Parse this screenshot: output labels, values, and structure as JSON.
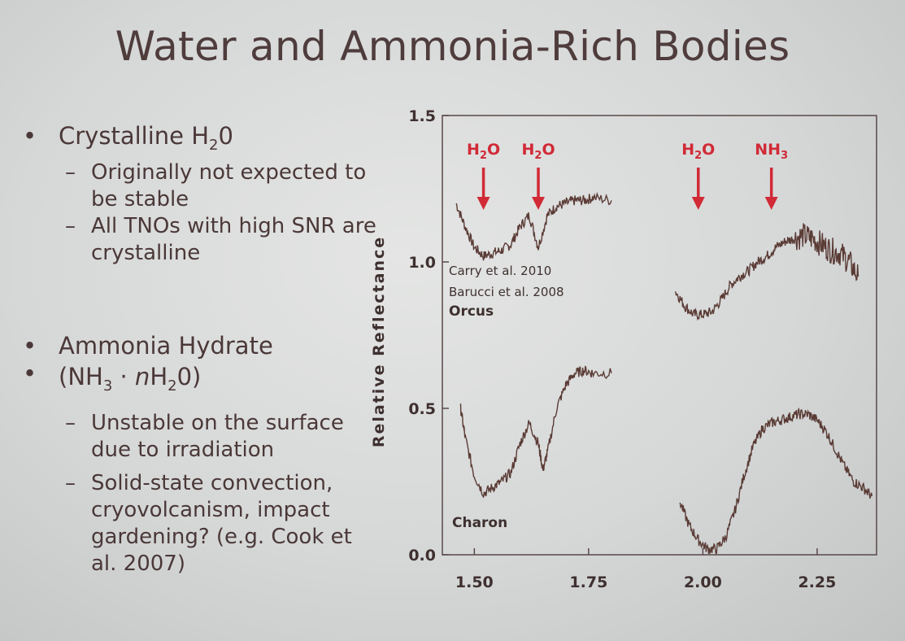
{
  "slide": {
    "title": "Water and Ammonia-Rich Bodies"
  },
  "bullets": [
    {
      "text": "Crystalline H",
      "sub": "2",
      "tail": "0",
      "subitems": [
        "Originally not expected to be stable",
        "All TNOs with high SNR are crystalline"
      ]
    },
    {
      "line1": "Ammonia Hydrate",
      "line2_a": "(NH",
      "line2_sub1": "3",
      "line2_b": " · ",
      "line2_n": "n",
      "line2_c": "H",
      "line2_sub2": "2",
      "line2_d": "0)",
      "subitems": [
        "Unstable on the surface due to irradiation",
        "Solid-state convection, cryovolcanism, impact gardening? (e.g. Cook et al. 2007)"
      ]
    }
  ],
  "chart_data": {
    "type": "line",
    "ylabel": "Relative Reflectance",
    "xlabel": "",
    "xlim": [
      1.43,
      2.38
    ],
    "ylim": [
      0.0,
      1.5
    ],
    "xticks": [
      "1.50",
      "1.75",
      "2.00",
      "2.25"
    ],
    "yticks": [
      "0.0",
      "0.5",
      "1.0",
      "1.5"
    ],
    "series": [
      {
        "name": "Orcus",
        "segments": [
          {
            "x": [
              1.46,
              1.48,
              1.5,
              1.52,
              1.54,
              1.56,
              1.58,
              1.6,
              1.62,
              1.64,
              1.66,
              1.68,
              1.7,
              1.72,
              1.74,
              1.76,
              1.8
            ],
            "y": [
              1.2,
              1.12,
              1.05,
              1.02,
              1.03,
              1.04,
              1.06,
              1.12,
              1.16,
              1.05,
              1.16,
              1.19,
              1.2,
              1.21,
              1.21,
              1.22,
              1.21
            ]
          },
          {
            "x": [
              1.94,
              1.96,
              1.98,
              2.0,
              2.02,
              2.04,
              2.06,
              2.08,
              2.1,
              2.12,
              2.14,
              2.16,
              2.18,
              2.2,
              2.22,
              2.24,
              2.26,
              2.28,
              2.3,
              2.32,
              2.34
            ],
            "y": [
              0.9,
              0.85,
              0.82,
              0.82,
              0.83,
              0.87,
              0.92,
              0.95,
              0.97,
              1.0,
              1.02,
              1.05,
              1.07,
              1.08,
              1.09,
              1.08,
              1.06,
              1.04,
              1.03,
              1.0,
              0.95
            ]
          }
        ]
      },
      {
        "name": "Charon",
        "segments": [
          {
            "x": [
              1.47,
              1.48,
              1.5,
              1.52,
              1.54,
              1.56,
              1.58,
              1.6,
              1.62,
              1.64,
              1.65,
              1.66,
              1.68,
              1.7,
              1.72,
              1.74,
              1.76,
              1.8
            ],
            "y": [
              0.5,
              0.4,
              0.27,
              0.21,
              0.23,
              0.25,
              0.28,
              0.38,
              0.45,
              0.38,
              0.29,
              0.35,
              0.5,
              0.58,
              0.62,
              0.63,
              0.62,
              0.62
            ]
          },
          {
            "x": [
              1.95,
              1.97,
              1.99,
              2.01,
              2.03,
              2.05,
              2.07,
              2.09,
              2.11,
              2.13,
              2.15,
              2.17,
              2.19,
              2.21,
              2.23,
              2.25,
              2.27,
              2.29,
              2.31,
              2.33,
              2.35,
              2.37
            ],
            "y": [
              0.18,
              0.1,
              0.05,
              0.02,
              0.02,
              0.06,
              0.15,
              0.27,
              0.37,
              0.43,
              0.45,
              0.46,
              0.47,
              0.48,
              0.48,
              0.46,
              0.42,
              0.36,
              0.3,
              0.25,
              0.23,
              0.2
            ]
          }
        ]
      }
    ],
    "annotations": [
      {
        "id": "h2o_1",
        "label_main": "H",
        "label_sub": "2",
        "label_tail": "O",
        "x": 1.52
      },
      {
        "id": "h2o_2",
        "label_main": "H",
        "label_sub": "2",
        "label_tail": "O",
        "x": 1.64
      },
      {
        "id": "h2o_3",
        "label_main": "H",
        "label_sub": "2",
        "label_tail": "O",
        "x": 1.99
      },
      {
        "id": "nh3",
        "label_main": "NH",
        "label_sub": "3",
        "label_tail": "",
        "x": 2.15
      }
    ],
    "notes": {
      "ref1": "Carry et al. 2010",
      "ref2": "Barucci et al. 2008",
      "orcus_label": "Orcus",
      "charon_label": "Charon"
    },
    "colors": {
      "spectrum": "#5a3b35",
      "arrows": "#d12a36"
    }
  }
}
